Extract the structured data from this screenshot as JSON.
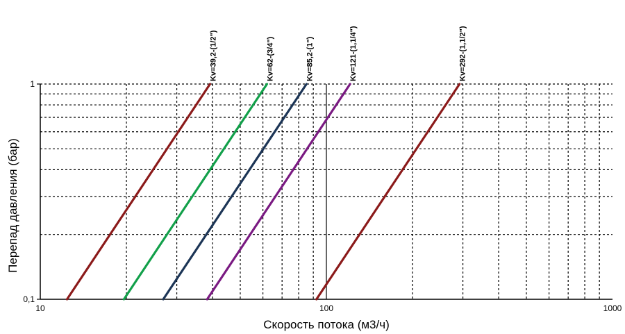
{
  "chart_data": {
    "type": "line",
    "xlabel": "Скорость потока (м3/ч)",
    "ylabel": "Перепад давления (бар)",
    "x_scale": "log",
    "y_scale": "log",
    "xlim": [
      10,
      1000
    ],
    "ylim": [
      0.1,
      1
    ],
    "x_ticks": [
      {
        "value": 10,
        "label": "10"
      },
      {
        "value": 100,
        "label": "100"
      },
      {
        "value": 1000,
        "label": "1000"
      }
    ],
    "y_ticks": [
      {
        "value": 0.1,
        "label": "0,1"
      },
      {
        "value": 1,
        "label": "1"
      }
    ],
    "grid": "dotted, log minor divisions",
    "legend": "labels at top of each line",
    "series": [
      {
        "name": "Kv=39,2-(1/2\")",
        "kv": 39.2,
        "color": "#8b1a1a",
        "points": [
          {
            "x": 12.4,
            "y": 0.1
          },
          {
            "x": 39.2,
            "y": 1
          }
        ]
      },
      {
        "name": "Kv=62-(3/4\")",
        "kv": 62,
        "color": "#12a04a",
        "points": [
          {
            "x": 19.6,
            "y": 0.1
          },
          {
            "x": 62,
            "y": 1
          }
        ]
      },
      {
        "name": "Kv=85,2-(1\")",
        "kv": 85.2,
        "color": "#1c3556",
        "points": [
          {
            "x": 26.9,
            "y": 0.1
          },
          {
            "x": 85.2,
            "y": 1
          }
        ]
      },
      {
        "name": "Kv=121-(1,1/4\")",
        "kv": 121,
        "color": "#7a1a82",
        "points": [
          {
            "x": 38.3,
            "y": 0.1
          },
          {
            "x": 121,
            "y": 1
          }
        ]
      },
      {
        "name": "Kv=292-(1,1/2\")",
        "kv": 292,
        "color": "#8b1a1a",
        "points": [
          {
            "x": 92.3,
            "y": 0.1
          },
          {
            "x": 292,
            "y": 1
          }
        ]
      }
    ]
  }
}
